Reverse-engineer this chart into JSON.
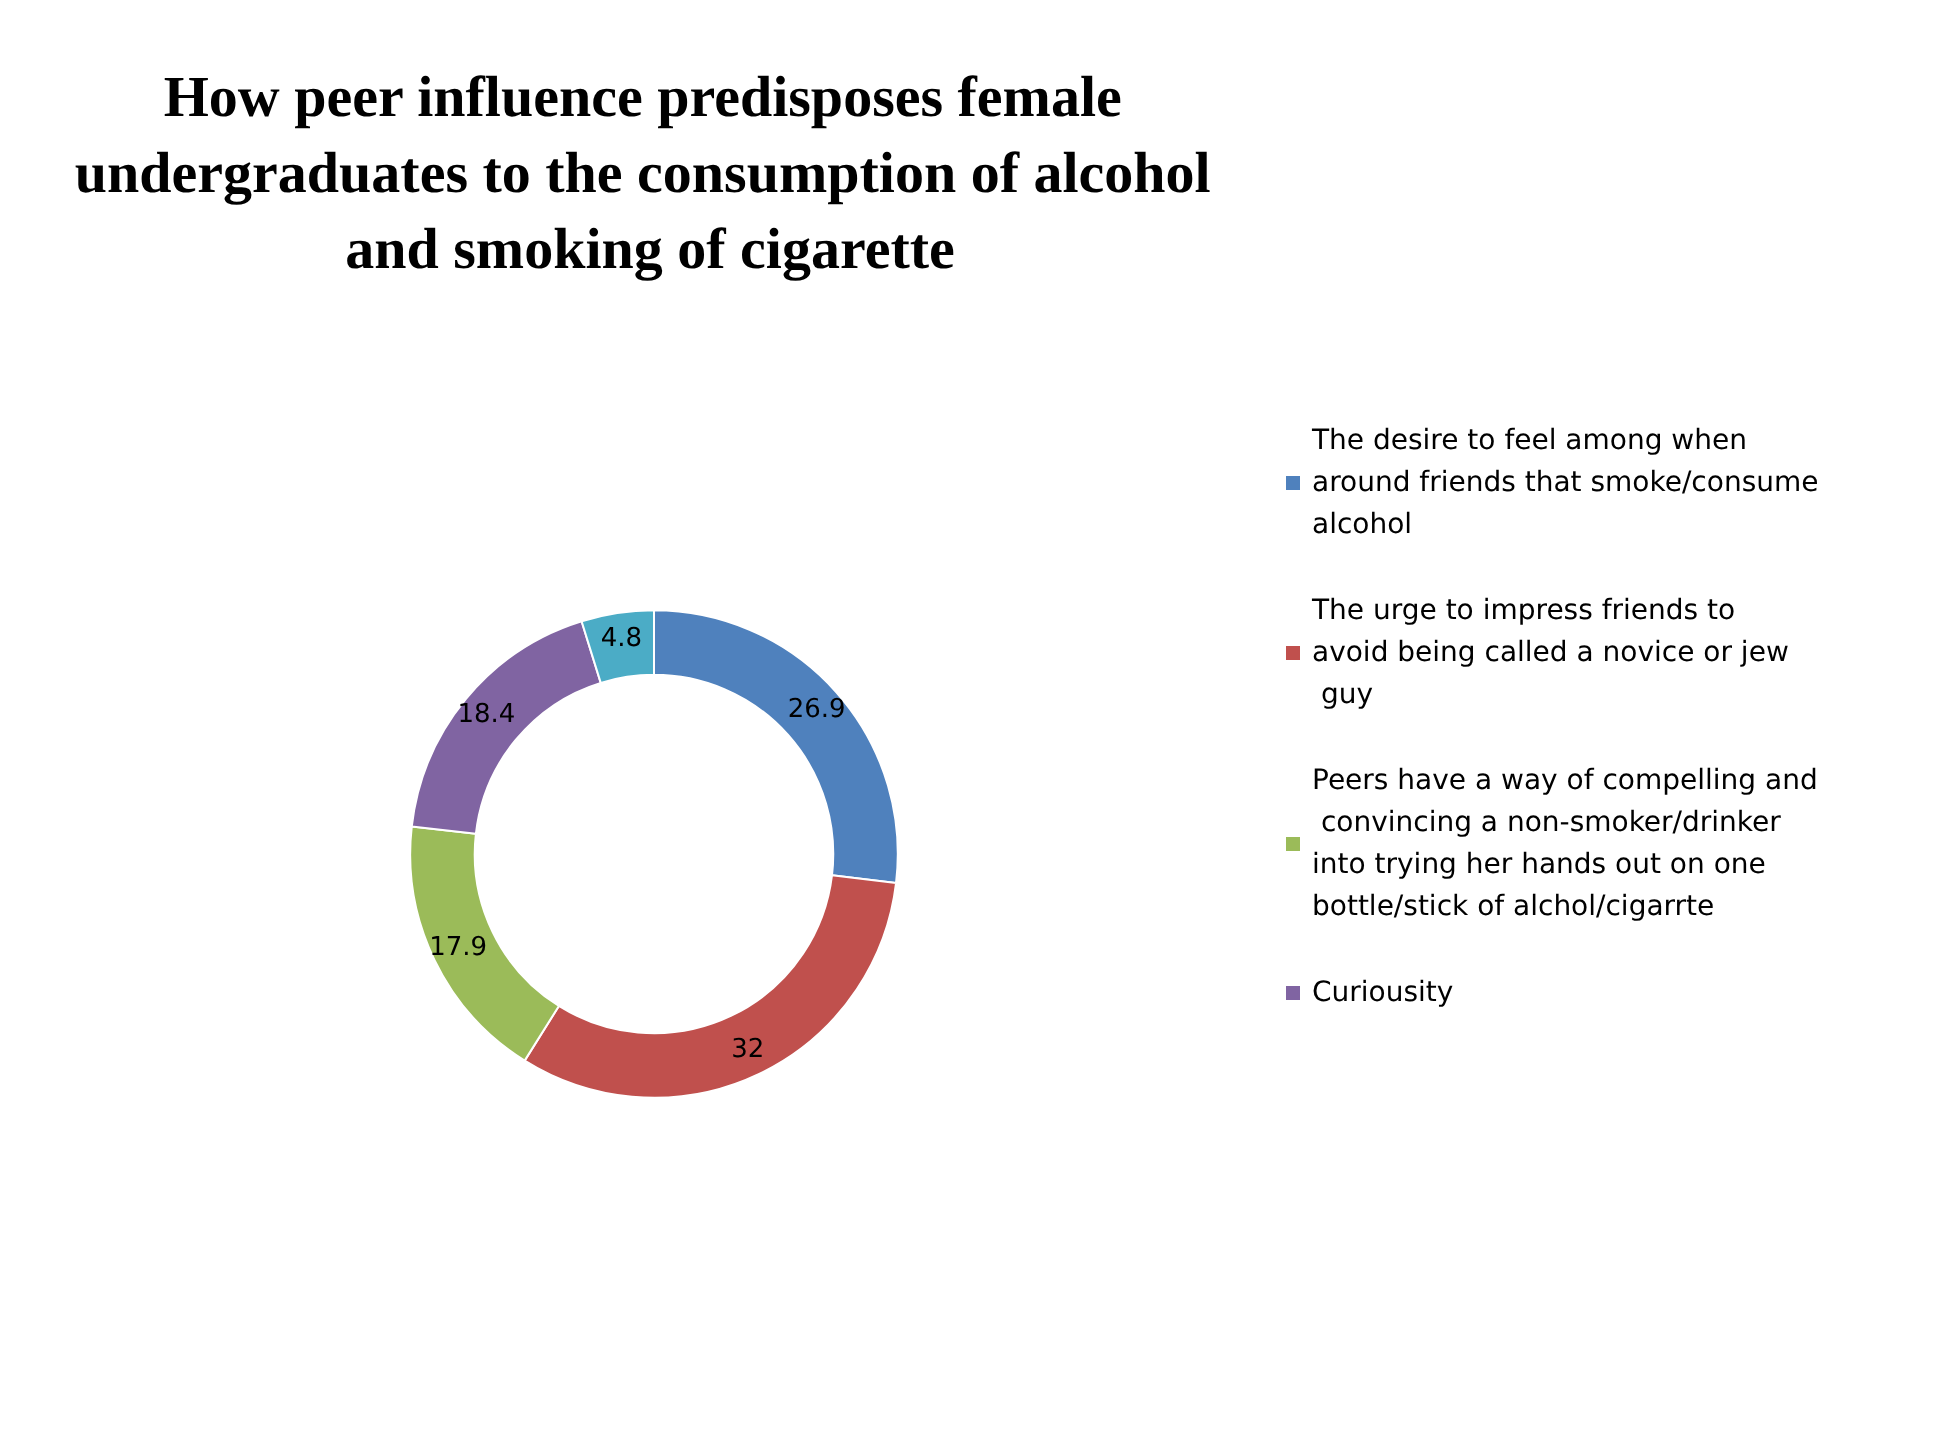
{
  "chart_data": {
    "type": "donut",
    "title": "How peer influence predisposes female undergraduates to the consumption of alcohol and smoking of cigarette",
    "categories": [
      "The desire to feel among when around friends that smoke/consume alcohol",
      "The urge to impress friends to avoid being called a novice or jew guy",
      "Peers have a way of compelling and convincing a non-smoker/drinker into trying her hands out on one bottle/stick of alchol/cigarrte",
      "Curiousity",
      null
    ],
    "values": [
      26.9,
      32,
      17.9,
      18.4,
      4.8
    ],
    "colors": [
      "#4f81bd",
      "#c0504d",
      "#9bbb59",
      "#8064a2",
      "#4bacc6"
    ],
    "data_labels": true,
    "legend": "right"
  }
}
